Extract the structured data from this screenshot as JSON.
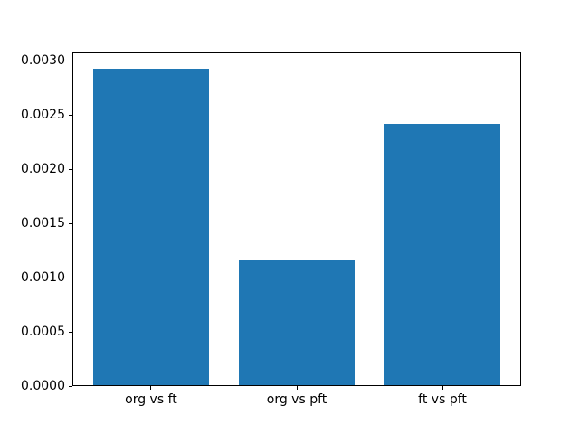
{
  "chart_data": {
    "type": "bar",
    "categories": [
      "org vs ft",
      "org vs pft",
      "ft vs pft"
    ],
    "values": [
      0.00293,
      0.00116,
      0.00242
    ],
    "title": "",
    "xlabel": "",
    "ylabel": "",
    "ylim": [
      0,
      0.0030765
    ],
    "yticks": [
      0.0,
      0.0005,
      0.001,
      0.0015,
      0.002,
      0.0025,
      0.003
    ],
    "ytick_labels": [
      "0.0000",
      "0.0005",
      "0.0010",
      "0.0015",
      "0.0020",
      "0.0025",
      "0.0030"
    ],
    "bar_width_fraction": 0.8,
    "grid": false,
    "legend": null,
    "colors": {
      "bar": "#1f77b4",
      "spine": "#000000",
      "background": "#ffffff",
      "text": "#000000"
    }
  }
}
